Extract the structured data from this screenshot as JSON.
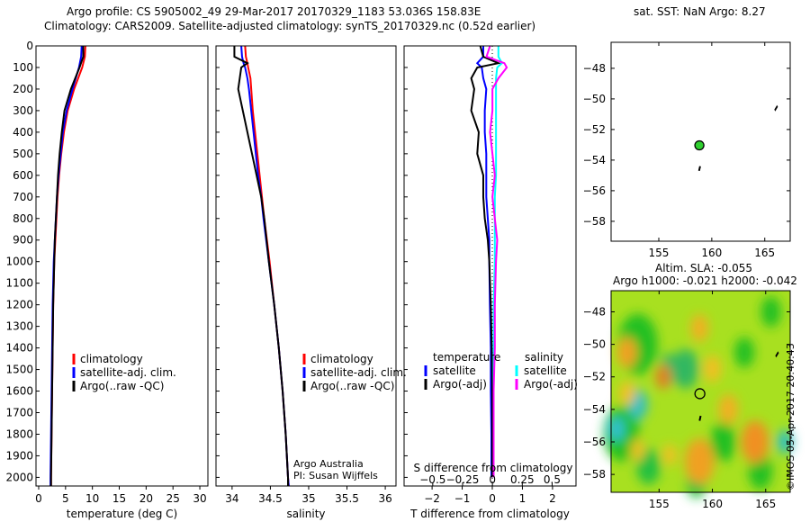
{
  "title_line1": "Argo profile: CS 5905002_49 29-Mar-2017 20170329_1183 53.036S 158.83E",
  "title_line2": "Climatology: CARS2009. Satellite-adjusted climatology: synTS_20170329.nc (0.52d earlier)",
  "credit": "©IMOS 05-Apr-2017 20:40:43",
  "credit_sub": "Argo Australia",
  "credit_pi": "PI: Susan Wijffels",
  "map1_title": "sat. SST: NaN Argo: 8.27",
  "map2_title1": "Altim. SLA: -0.055",
  "map2_title2": "Argo h1000: -0.021 h2000: -0.042",
  "colors": {
    "climatology": "#ff0000",
    "satellite": "#0000ff",
    "argo": "#000000",
    "sal_satellite": "#00ffff",
    "sal_argo": "#ff00ff"
  },
  "chart_data": [
    {
      "type": "line",
      "xlabel": "temperature (deg C)",
      "ylabel": "",
      "xlim": [
        -0.5,
        31.5
      ],
      "ylim": [
        2040,
        0
      ],
      "xticks": [
        0,
        5,
        10,
        15,
        20,
        25,
        30
      ],
      "yticks": [
        0,
        100,
        200,
        300,
        400,
        500,
        600,
        700,
        800,
        900,
        1000,
        1100,
        1200,
        1300,
        1400,
        1500,
        1600,
        1700,
        1800,
        1900,
        2000
      ],
      "legend": [
        "climatology",
        "satellite-adj. clim.",
        "Argo(..raw -QC)"
      ],
      "depth": [
        0,
        50,
        100,
        200,
        300,
        400,
        500,
        600,
        700,
        800,
        900,
        1000,
        1200,
        1400,
        1600,
        1800,
        2000,
        2040
      ],
      "series": [
        {
          "name": "climatology",
          "values": [
            8.7,
            8.6,
            8.1,
            6.6,
            5.4,
            4.7,
            4.2,
            3.8,
            3.5,
            3.3,
            3.1,
            2.9,
            2.7,
            2.6,
            2.5,
            2.4,
            2.3,
            2.3
          ]
        },
        {
          "name": "satellite-adj. clim.",
          "values": [
            8.0,
            7.9,
            7.5,
            6.3,
            5.2,
            4.5,
            4.1,
            3.7,
            3.4,
            3.2,
            3.0,
            2.8,
            2.6,
            2.5,
            2.4,
            2.3,
            2.2,
            2.2
          ]
        },
        {
          "name": "Argo(..raw -QC)",
          "values": [
            8.3,
            8.3,
            7.6,
            6.0,
            4.8,
            4.3,
            3.9,
            3.6,
            3.4,
            3.2,
            3.0,
            2.9,
            2.7,
            2.6,
            2.5,
            2.4,
            2.3,
            2.3
          ]
        }
      ]
    },
    {
      "type": "line",
      "xlabel": "salinity",
      "xlim": [
        33.79,
        36.14
      ],
      "ylim": [
        2040,
        0
      ],
      "xticks": [
        34,
        34.5,
        35,
        35.5,
        36
      ],
      "legend": [
        "climatology",
        "satellite-adj. clim.",
        "Argo(..raw -QC)"
      ],
      "depth": [
        0,
        50,
        80,
        100,
        150,
        200,
        300,
        400,
        500,
        600,
        700,
        800,
        1000,
        1200,
        1400,
        1600,
        1800,
        2000,
        2040
      ],
      "series": [
        {
          "name": "climatology",
          "values": [
            34.17,
            34.18,
            34.2,
            34.21,
            34.24,
            34.25,
            34.27,
            34.3,
            34.33,
            34.36,
            34.39,
            34.42,
            34.49,
            34.55,
            34.61,
            34.66,
            34.7,
            34.73,
            34.74
          ]
        },
        {
          "name": "satellite-adj. clim.",
          "values": [
            34.12,
            34.13,
            34.15,
            34.17,
            34.2,
            34.22,
            34.25,
            34.28,
            34.31,
            34.34,
            34.38,
            34.41,
            34.48,
            34.55,
            34.61,
            34.66,
            34.7,
            34.73,
            34.74
          ]
        },
        {
          "name": "Argo(..raw -QC)",
          "values": [
            34.03,
            34.03,
            34.2,
            34.12,
            34.1,
            34.08,
            34.14,
            34.2,
            34.26,
            34.32,
            34.38,
            34.42,
            34.48,
            34.55,
            34.61,
            34.66,
            34.7,
            34.73,
            34.73
          ]
        }
      ]
    },
    {
      "type": "line",
      "xlabel": "T difference from climatology",
      "x2label": "S difference from climatology",
      "xlim": [
        -2.93,
        2.78
      ],
      "x2lim": [
        -0.74,
        0.7
      ],
      "ylim": [
        2040,
        0
      ],
      "xticks": [
        -2,
        -1,
        0,
        1,
        2
      ],
      "x2ticks": [
        -0.5,
        -0.25,
        0,
        0.25,
        0.5
      ],
      "legend_titles": [
        "temperature",
        "salinity"
      ],
      "legend": [
        "satellite",
        "Argo(-adj)",
        "satellite",
        "Argo(-adj)"
      ],
      "depth": [
        0,
        50,
        80,
        100,
        150,
        200,
        300,
        400,
        500,
        600,
        700,
        800,
        900,
        1000,
        1200,
        1400,
        1600,
        1800,
        2000
      ],
      "series": [
        {
          "name": "T satellite",
          "values": [
            -0.3,
            -0.3,
            -0.5,
            -0.35,
            -0.3,
            -0.2,
            -0.25,
            -0.25,
            -0.2,
            -0.2,
            -0.2,
            -0.15,
            -0.1,
            -0.1,
            -0.08,
            -0.05,
            -0.05,
            -0.03,
            -0.03
          ]
        },
        {
          "name": "T Argo(-adj)",
          "values": [
            -0.4,
            -0.3,
            0.2,
            -0.5,
            -0.7,
            -0.6,
            -0.7,
            -0.45,
            -0.5,
            -0.3,
            -0.3,
            -0.25,
            -0.15,
            -0.1,
            -0.05,
            -0.02,
            0,
            0,
            0
          ]
        },
        {
          "name": "S satellite",
          "values": [
            0.05,
            0.05,
            0.08,
            0.04,
            0.03,
            0.03,
            0.03,
            0.03,
            0.03,
            0.03,
            0.02,
            0.02,
            0.02,
            0.02,
            0.01,
            0.01,
            0.01,
            0.01,
            0.01
          ]
        },
        {
          "name": "S Argo(-adj)",
          "values": [
            -0.02,
            -0.05,
            0.1,
            0.12,
            0.05,
            0.0,
            0.0,
            -0.02,
            0.0,
            0.02,
            0.0,
            0.02,
            0.04,
            0.03,
            0.02,
            0.02,
            0.01,
            0.01,
            0.01
          ]
        }
      ]
    },
    {
      "type": "scatter",
      "title": "sat. SST: NaN Argo: 8.27",
      "xlim": [
        150.5,
        167.4
      ],
      "ylim": [
        -59.3,
        -46.3
      ],
      "xticks": [
        155,
        160,
        165
      ],
      "yticks": [
        -48,
        -50,
        -52,
        -54,
        -56,
        -58
      ],
      "argo_position": [
        158.83,
        -53.036
      ]
    },
    {
      "type": "heatmap",
      "title": "Altim. SLA: -0.055",
      "xlim": [
        150.5,
        167.3
      ],
      "ylim": [
        -59.1,
        -46.7
      ],
      "xticks": [
        155,
        160,
        165
      ],
      "yticks": [
        -48,
        -50,
        -52,
        -54,
        -56,
        -58
      ],
      "argo_position": [
        158.83,
        -53.036
      ]
    }
  ]
}
